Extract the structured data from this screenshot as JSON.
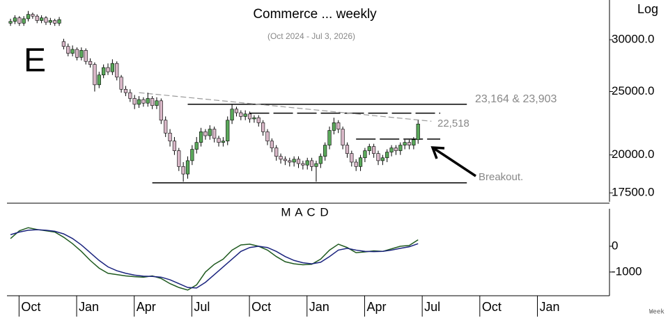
{
  "chart_data": [
    {
      "type": "candlestick",
      "title": "Commerce ... weekly",
      "subtitle": "(Oct 2024 - Jul 3, 2026)",
      "badge": "E",
      "scale_label": "Log",
      "log_scale": true,
      "levels_label": "23,164 & 23,903",
      "trend_label": "22,518",
      "breakout_label": "Breakout.",
      "up_color": "#5aa85a",
      "down_color": "#d9b8c8",
      "xlim": [
        -0.8,
        135.2
      ],
      "ylim": [
        17000,
        34000
      ],
      "yticks": [
        {
          "value": 30000,
          "label": "30000.0"
        },
        {
          "value": 25000,
          "label": "25000.0"
        },
        {
          "value": 20000,
          "label": "20000.0"
        },
        {
          "value": 17500,
          "label": "17500.0"
        }
      ],
      "open": [
        31800,
        32000,
        32400,
        31800,
        32300,
        32800,
        32600,
        32100,
        32400,
        31900,
        32100,
        31800,
        29800,
        29300,
        28600,
        29000,
        28200,
        28900,
        27800,
        27500,
        25600,
        26500,
        27200,
        26800,
        27600,
        26300,
        25200,
        24900,
        24400,
        23900,
        24300,
        24000,
        24400,
        23800,
        24200,
        22600,
        21600,
        21000,
        20300,
        19200,
        18700,
        19600,
        20400,
        20900,
        21700,
        21400,
        21900,
        21200,
        20900,
        21000,
        22600,
        23500,
        23200,
        22900,
        23100,
        22700,
        22800,
        22400,
        21700,
        21000,
        20500,
        19900,
        19700,
        19600,
        19500,
        19700,
        19400,
        19300,
        19600,
        19200,
        19400,
        19900,
        20700,
        21800,
        22400,
        21900,
        20700,
        20100,
        19500,
        19200,
        19800,
        20300,
        20600,
        20100,
        19600,
        19800,
        20200,
        20500,
        20300,
        20700,
        20900,
        20700,
        21100
      ],
      "high": [
        32300,
        32700,
        32600,
        32600,
        33200,
        33000,
        32800,
        32700,
        32600,
        32400,
        32300,
        32500,
        30100,
        29600,
        29400,
        29200,
        29200,
        29100,
        28100,
        27700,
        26800,
        27500,
        27600,
        28000,
        27800,
        26500,
        25500,
        25200,
        24700,
        24600,
        24500,
        24900,
        24600,
        24500,
        24400,
        22900,
        21900,
        21300,
        20500,
        19500,
        19900,
        20700,
        21300,
        22000,
        21900,
        22200,
        22100,
        21400,
        21300,
        22900,
        23900,
        23700,
        23400,
        23400,
        23300,
        23000,
        23000,
        22600,
        21900,
        21200,
        20700,
        20100,
        19900,
        19800,
        19900,
        19900,
        19600,
        19800,
        19800,
        19600,
        20100,
        20900,
        22100,
        22800,
        22600,
        22100,
        20900,
        20300,
        19700,
        20000,
        20500,
        20800,
        20800,
        20300,
        20000,
        20400,
        20700,
        20700,
        20900,
        21100,
        21100,
        21300,
        22600
      ],
      "low": [
        31500,
        31700,
        31500,
        31500,
        32000,
        32300,
        31800,
        31800,
        31600,
        31600,
        31500,
        31500,
        29000,
        28300,
        28300,
        27900,
        27900,
        27500,
        27200,
        25000,
        25300,
        26200,
        26500,
        26500,
        26000,
        24900,
        24600,
        24100,
        23500,
        23600,
        23700,
        23700,
        23500,
        23500,
        22300,
        21300,
        20600,
        20000,
        18900,
        18200,
        18400,
        19300,
        20100,
        20600,
        21100,
        21100,
        20900,
        20600,
        20600,
        20700,
        22300,
        22900,
        22600,
        22600,
        22400,
        22400,
        22100,
        21400,
        20700,
        20200,
        19600,
        19400,
        19300,
        19200,
        19200,
        19100,
        19000,
        19000,
        18900,
        18200,
        19100,
        19600,
        20400,
        21500,
        21600,
        20400,
        19800,
        19200,
        18900,
        18900,
        19500,
        20000,
        19800,
        19300,
        19300,
        19500,
        19900,
        20000,
        20000,
        20400,
        20400,
        20400,
        20800
      ],
      "close": [
        32000,
        32400,
        31800,
        32300,
        32800,
        32600,
        32100,
        32400,
        31900,
        32100,
        31800,
        32200,
        29300,
        28600,
        29000,
        28200,
        28900,
        27800,
        27500,
        25600,
        26500,
        27200,
        26800,
        27600,
        26300,
        25200,
        24900,
        24400,
        23900,
        24300,
        24000,
        24400,
        23800,
        24200,
        22600,
        21600,
        21000,
        20300,
        19200,
        18700,
        19600,
        20400,
        20900,
        21700,
        21400,
        21900,
        21200,
        20900,
        21000,
        22600,
        23500,
        23200,
        22900,
        23100,
        22700,
        22800,
        22400,
        21700,
        21000,
        20500,
        19900,
        19700,
        19600,
        19500,
        19700,
        19400,
        19300,
        19600,
        19200,
        19400,
        19900,
        20700,
        21800,
        22400,
        21900,
        20700,
        20100,
        19500,
        19200,
        19800,
        20300,
        20600,
        20100,
        19600,
        19800,
        20200,
        20500,
        20300,
        20700,
        20900,
        20700,
        21100,
        22300
      ],
      "levels": [
        {
          "value": 23903,
          "from": 40,
          "to": 103,
          "style": "solid"
        },
        {
          "value": 23164,
          "from": 54,
          "to": 97,
          "style": "dashed"
        },
        {
          "value": 18130,
          "from": 32,
          "to": 103,
          "style": "solid"
        },
        {
          "value": 21150,
          "from": 78,
          "to": 97,
          "style": "dashed"
        }
      ],
      "trendline": {
        "x": [
          29,
          95
        ],
        "y": [
          24900,
          22518
        ],
        "color": "#999999"
      }
    },
    {
      "type": "line",
      "title": "M A C D",
      "corner_label": "Week",
      "xlim": [
        -0.8,
        135.2
      ],
      "xticks": [
        {
          "value": 2.4,
          "label": "Oct"
        },
        {
          "value": 15.4,
          "label": "Jan"
        },
        {
          "value": 28.4,
          "label": "Apr"
        },
        {
          "value": 41.4,
          "label": "Jul"
        },
        {
          "value": 54.4,
          "label": "Oct"
        },
        {
          "value": 67.4,
          "label": "Jan"
        },
        {
          "value": 80.4,
          "label": "Apr"
        },
        {
          "value": 93.4,
          "label": "Jul"
        },
        {
          "value": 106.4,
          "label": "Oct"
        },
        {
          "value": 119.4,
          "label": "Jan"
        }
      ],
      "ylim": [
        -1920,
        1320
      ],
      "yticks": [
        0,
        -1000
      ],
      "x": [
        0,
        2,
        4,
        6,
        8,
        10,
        12,
        14,
        16,
        18,
        20,
        22,
        24,
        26,
        28,
        30,
        32,
        34,
        36,
        38,
        40,
        42,
        44,
        46,
        48,
        50,
        52,
        54,
        56,
        58,
        60,
        62,
        64,
        66,
        68,
        70,
        72,
        74,
        76,
        78,
        80,
        82,
        84,
        86,
        88,
        90,
        92
      ],
      "series": [
        {
          "color": "#1f5a1f",
          "values": [
            300,
            600,
            720,
            650,
            600,
            550,
            350,
            100,
            -200,
            -550,
            -850,
            -1050,
            -1100,
            -1150,
            -1180,
            -1200,
            -1150,
            -1250,
            -1450,
            -1600,
            -1700,
            -1500,
            -1000,
            -700,
            -500,
            -150,
            50,
            80,
            0,
            -150,
            -400,
            -600,
            -680,
            -720,
            -700,
            -500,
            -150,
            80,
            -50,
            -250,
            -220,
            -180,
            -200,
            -100,
            0,
            30,
            250
          ]
        },
        {
          "color": "#1a237e",
          "values": [
            450,
            550,
            620,
            640,
            620,
            580,
            480,
            300,
            50,
            -250,
            -550,
            -800,
            -950,
            -1050,
            -1120,
            -1160,
            -1170,
            -1200,
            -1300,
            -1450,
            -1600,
            -1620,
            -1400,
            -1100,
            -800,
            -500,
            -200,
            -50,
            0,
            -50,
            -200,
            -400,
            -550,
            -640,
            -680,
            -620,
            -400,
            -150,
            -80,
            -150,
            -200,
            -210,
            -200,
            -150,
            -80,
            -20,
            100
          ]
        }
      ]
    }
  ]
}
